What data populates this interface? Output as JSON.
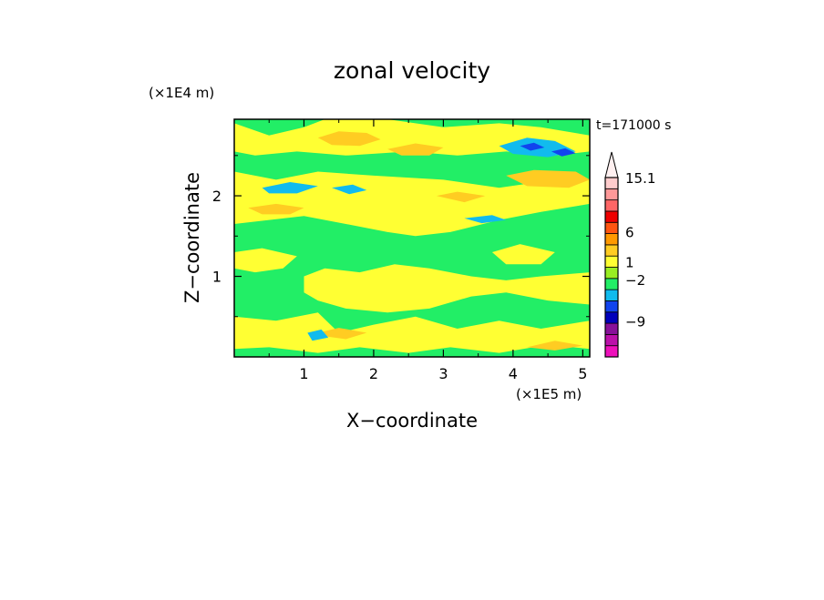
{
  "chart_data": {
    "type": "heatmap",
    "title": "zonal velocity",
    "xlabel": "X−coordinate",
    "ylabel": "Z−coordinate",
    "x_unit": "(×1E5 m)",
    "y_unit": "(×1E4 m)",
    "time_label": "t=171000 s",
    "xlim": [
      0,
      5.1
    ],
    "ylim": [
      0,
      2.95
    ],
    "x_ticks": [
      {
        "value": 1,
        "label": "1"
      },
      {
        "value": 2,
        "label": "2"
      },
      {
        "value": 3,
        "label": "3"
      },
      {
        "value": 4,
        "label": "4"
      },
      {
        "value": 5,
        "label": "5"
      }
    ],
    "y_ticks": [
      {
        "value": 1,
        "label": "1"
      },
      {
        "value": 2,
        "label": "2"
      }
    ],
    "colorbar": {
      "colors_bottom_to_top": [
        "#ee11bb",
        "#bb11aa",
        "#881199",
        "#0000bb",
        "#1144ee",
        "#11bbee",
        "#22ee66",
        "#99ee22",
        "#ffff33",
        "#ffcc22",
        "#ff9900",
        "#ff5511",
        "#ee0000",
        "#ff6666",
        "#ff9999",
        "#ffcccc"
      ],
      "min_value": -15,
      "max_value": 15.1,
      "extend_top": true,
      "tick_labels": [
        {
          "value": 15.1,
          "label": "15.1"
        },
        {
          "value": 6,
          "label": "6"
        },
        {
          "value": 1,
          "label": "1"
        },
        {
          "value": -2,
          "label": "−2"
        },
        {
          "value": -9,
          "label": "−9"
        }
      ]
    },
    "field": {
      "background_value": 0,
      "background_color": "#22ee66",
      "regions": [
        {
          "value": 0.5,
          "color": "#ffff33",
          "points": [
            [
              0,
              2.3
            ],
            [
              0.6,
              2.2
            ],
            [
              1.2,
              2.3
            ],
            [
              2.0,
              2.25
            ],
            [
              3.0,
              2.2
            ],
            [
              3.8,
              2.1
            ],
            [
              4.6,
              2.2
            ],
            [
              5.1,
              2.2
            ],
            [
              5.1,
              1.9
            ],
            [
              4.4,
              1.8
            ],
            [
              3.8,
              1.7
            ],
            [
              3.1,
              1.55
            ],
            [
              2.6,
              1.5
            ],
            [
              2.2,
              1.55
            ],
            [
              1.6,
              1.65
            ],
            [
              1.0,
              1.75
            ],
            [
              0.5,
              1.7
            ],
            [
              0,
              1.65
            ]
          ]
        },
        {
          "value": 0.5,
          "color": "#ffff33",
          "points": [
            [
              0,
              2.9
            ],
            [
              0.5,
              2.75
            ],
            [
              1.0,
              2.85
            ],
            [
              1.3,
              2.95
            ],
            [
              2.2,
              2.95
            ],
            [
              3.0,
              2.85
            ],
            [
              3.8,
              2.9
            ],
            [
              4.4,
              2.85
            ],
            [
              5.1,
              2.75
            ],
            [
              5.1,
              2.55
            ],
            [
              4.6,
              2.5
            ],
            [
              3.9,
              2.55
            ],
            [
              3.2,
              2.5
            ],
            [
              2.5,
              2.55
            ],
            [
              1.6,
              2.5
            ],
            [
              0.9,
              2.55
            ],
            [
              0.3,
              2.5
            ],
            [
              0,
              2.55
            ]
          ]
        },
        {
          "value": 0.5,
          "color": "#ffff33",
          "points": [
            [
              1.0,
              1.0
            ],
            [
              1.3,
              1.1
            ],
            [
              1.8,
              1.05
            ],
            [
              2.3,
              1.15
            ],
            [
              2.8,
              1.1
            ],
            [
              3.4,
              1.0
            ],
            [
              3.9,
              0.95
            ],
            [
              4.4,
              1.0
            ],
            [
              5.1,
              1.05
            ],
            [
              5.1,
              0.65
            ],
            [
              4.5,
              0.7
            ],
            [
              3.9,
              0.8
            ],
            [
              3.4,
              0.75
            ],
            [
              2.8,
              0.6
            ],
            [
              2.2,
              0.55
            ],
            [
              1.6,
              0.6
            ],
            [
              1.2,
              0.7
            ],
            [
              1.0,
              0.8
            ]
          ]
        },
        {
          "value": 0.5,
          "color": "#ffff33",
          "points": [
            [
              0,
              0.5
            ],
            [
              0.6,
              0.45
            ],
            [
              1.2,
              0.55
            ],
            [
              1.5,
              0.3
            ],
            [
              2.0,
              0.4
            ],
            [
              2.6,
              0.5
            ],
            [
              3.2,
              0.35
            ],
            [
              3.8,
              0.45
            ],
            [
              4.4,
              0.35
            ],
            [
              5.1,
              0.45
            ],
            [
              5.1,
              0.1
            ],
            [
              4.5,
              0.15
            ],
            [
              3.8,
              0.05
            ],
            [
              3.1,
              0.12
            ],
            [
              2.5,
              0.05
            ],
            [
              1.8,
              0.12
            ],
            [
              1.2,
              0.05
            ],
            [
              0.5,
              0.12
            ],
            [
              0,
              0.1
            ]
          ]
        },
        {
          "value": 0.5,
          "color": "#ffff33",
          "points": [
            [
              0,
              1.3
            ],
            [
              0.4,
              1.35
            ],
            [
              0.9,
              1.25
            ],
            [
              0.7,
              1.1
            ],
            [
              0.3,
              1.05
            ],
            [
              0,
              1.1
            ]
          ]
        },
        {
          "value": 0.5,
          "color": "#ffff33",
          "points": [
            [
              3.7,
              1.3
            ],
            [
              4.1,
              1.4
            ],
            [
              4.6,
              1.3
            ],
            [
              4.4,
              1.15
            ],
            [
              3.9,
              1.15
            ]
          ]
        },
        {
          "value": 3,
          "color": "#ffcc22",
          "points": [
            [
              1.2,
              2.72
            ],
            [
              1.5,
              2.8
            ],
            [
              1.9,
              2.78
            ],
            [
              2.1,
              2.7
            ],
            [
              1.8,
              2.62
            ],
            [
              1.4,
              2.63
            ]
          ]
        },
        {
          "value": 3,
          "color": "#ffcc22",
          "points": [
            [
              2.2,
              2.58
            ],
            [
              2.6,
              2.65
            ],
            [
              3.0,
              2.6
            ],
            [
              2.8,
              2.5
            ],
            [
              2.4,
              2.5
            ]
          ]
        },
        {
          "value": 3,
          "color": "#ffcc22",
          "points": [
            [
              3.9,
              2.25
            ],
            [
              4.3,
              2.32
            ],
            [
              4.9,
              2.3
            ],
            [
              5.1,
              2.2
            ],
            [
              4.8,
              2.1
            ],
            [
              4.2,
              2.12
            ]
          ]
        },
        {
          "value": 3,
          "color": "#ffcc22",
          "points": [
            [
              0.2,
              1.85
            ],
            [
              0.6,
              1.9
            ],
            [
              1.0,
              1.85
            ],
            [
              0.8,
              1.77
            ],
            [
              0.4,
              1.77
            ]
          ]
        },
        {
          "value": 3,
          "color": "#ffcc22",
          "points": [
            [
              2.9,
              2.0
            ],
            [
              3.2,
              2.05
            ],
            [
              3.6,
              2.0
            ],
            [
              3.3,
              1.92
            ]
          ]
        },
        {
          "value": 3,
          "color": "#ffcc22",
          "points": [
            [
              1.1,
              0.28
            ],
            [
              1.5,
              0.36
            ],
            [
              1.9,
              0.3
            ],
            [
              1.6,
              0.22
            ]
          ]
        },
        {
          "value": 3,
          "color": "#ffcc22",
          "points": [
            [
              4.2,
              0.12
            ],
            [
              4.6,
              0.2
            ],
            [
              5.0,
              0.14
            ],
            [
              4.6,
              0.08
            ]
          ]
        },
        {
          "value": -1.5,
          "color": "#11bbee",
          "points": [
            [
              3.8,
              2.62
            ],
            [
              4.2,
              2.72
            ],
            [
              4.6,
              2.68
            ],
            [
              4.9,
              2.55
            ],
            [
              4.5,
              2.48
            ],
            [
              4.0,
              2.52
            ]
          ]
        },
        {
          "value": -1.5,
          "color": "#11bbee",
          "points": [
            [
              0.4,
              2.1
            ],
            [
              0.8,
              2.17
            ],
            [
              1.2,
              2.12
            ],
            [
              0.9,
              2.03
            ],
            [
              0.5,
              2.03
            ]
          ]
        },
        {
          "value": -1.5,
          "color": "#11bbee",
          "points": [
            [
              1.4,
              2.1
            ],
            [
              1.7,
              2.14
            ],
            [
              1.9,
              2.07
            ],
            [
              1.65,
              2.02
            ]
          ]
        },
        {
          "value": -1.5,
          "color": "#11bbee",
          "points": [
            [
              3.3,
              1.72
            ],
            [
              3.7,
              1.76
            ],
            [
              3.9,
              1.7
            ],
            [
              3.55,
              1.66
            ]
          ]
        },
        {
          "value": -1.5,
          "color": "#11bbee",
          "points": [
            [
              1.05,
              0.3
            ],
            [
              1.25,
              0.34
            ],
            [
              1.35,
              0.24
            ],
            [
              1.12,
              0.2
            ]
          ]
        },
        {
          "value": -5,
          "color": "#1144ee",
          "points": [
            [
              4.1,
              2.62
            ],
            [
              4.3,
              2.66
            ],
            [
              4.45,
              2.6
            ],
            [
              4.25,
              2.56
            ]
          ]
        },
        {
          "value": -5,
          "color": "#1144ee",
          "points": [
            [
              4.55,
              2.55
            ],
            [
              4.75,
              2.59
            ],
            [
              4.9,
              2.53
            ],
            [
              4.7,
              2.49
            ]
          ]
        }
      ]
    }
  }
}
